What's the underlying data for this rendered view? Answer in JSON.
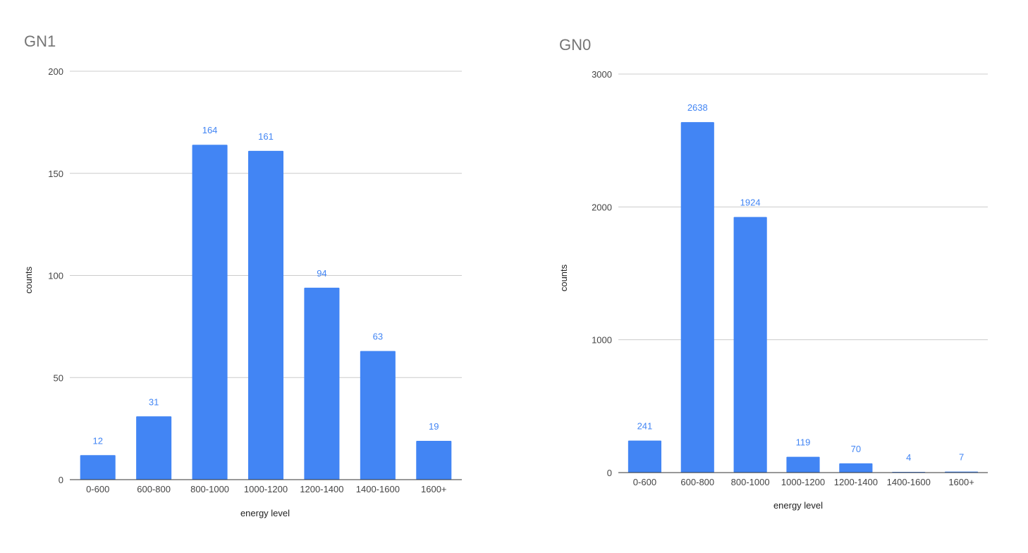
{
  "chart_data": [
    {
      "type": "bar",
      "title": "GN1",
      "xlabel": "energy level",
      "ylabel": "counts",
      "categories": [
        "0-600",
        "600-800",
        "800-1000",
        "1000-1200",
        "1200-1400",
        "1400-1600",
        "1600+"
      ],
      "values": [
        12,
        31,
        164,
        161,
        94,
        63,
        19
      ],
      "data_labels": [
        "12",
        "31",
        "164",
        "161",
        "94",
        "63",
        "19"
      ],
      "ylim": [
        0,
        200
      ],
      "yticks": [
        "0",
        "50",
        "100",
        "150",
        "200"
      ],
      "grid": true,
      "legend": "none",
      "bar_color": "#4285f4"
    },
    {
      "type": "bar",
      "title": "GN0",
      "xlabel": "energy level",
      "ylabel": "counts",
      "categories": [
        "0-600",
        "600-800",
        "800-1000",
        "1000-1200",
        "1200-1400",
        "1400-1600",
        "1600+"
      ],
      "values": [
        241,
        2638,
        1924,
        119,
        70,
        4,
        7
      ],
      "data_labels": [
        "241",
        "2638",
        "1924",
        "119",
        "70",
        "4",
        "7"
      ],
      "ylim": [
        0,
        3000
      ],
      "yticks": [
        "0",
        "1000",
        "2000",
        "3000"
      ],
      "grid": true,
      "legend": "none",
      "bar_color": "#4285f4"
    }
  ]
}
